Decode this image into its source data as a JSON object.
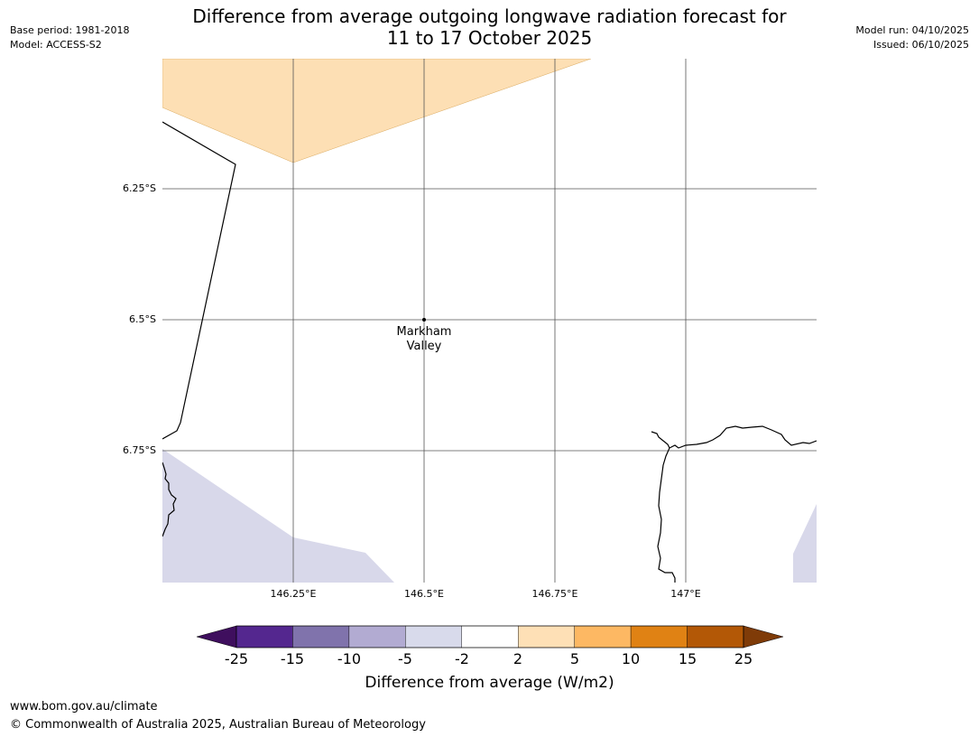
{
  "title": {
    "line1": "Difference from average outgoing longwave radiation forecast for",
    "line2": "11 to 17 October 2025"
  },
  "meta_left": {
    "base_period": "Base period: 1981-2018",
    "model": "Model: ACCESS-S2"
  },
  "meta_right": {
    "model_run": "Model run: 04/10/2025",
    "issued": "Issued: 06/10/2025"
  },
  "map": {
    "lat_labels": [
      "6.25°S",
      "6.5°S",
      "6.75°S"
    ],
    "lon_labels": [
      "146.25°E",
      "146.5°E",
      "146.75°E",
      "147°E"
    ],
    "place": {
      "name_line1": "Markham",
      "name_line2": "Valley"
    },
    "colors": {
      "positive_2_5": "#fddfb4",
      "negative_5_2": "#d8d8ea",
      "coastline": "#000000",
      "gridline": "#555555"
    }
  },
  "colorbar": {
    "label": "Difference from average (W/m2)",
    "ticks": [
      "-25",
      "-15",
      "-10",
      "-5",
      "-2",
      "2",
      "5",
      "10",
      "15",
      "25"
    ],
    "colors": [
      "#3f0f5e",
      "#54278f",
      "#8073ac",
      "#b2abd2",
      "#d8daeb",
      "#ffffff",
      "#fee0b6",
      "#fdb863",
      "#e08214",
      "#b35806",
      "#7f3b08"
    ]
  },
  "footer": {
    "url": "www.bom.gov.au/climate",
    "copyright": "© Commonwealth of Australia 2025, Australian Bureau of Meteorology"
  }
}
